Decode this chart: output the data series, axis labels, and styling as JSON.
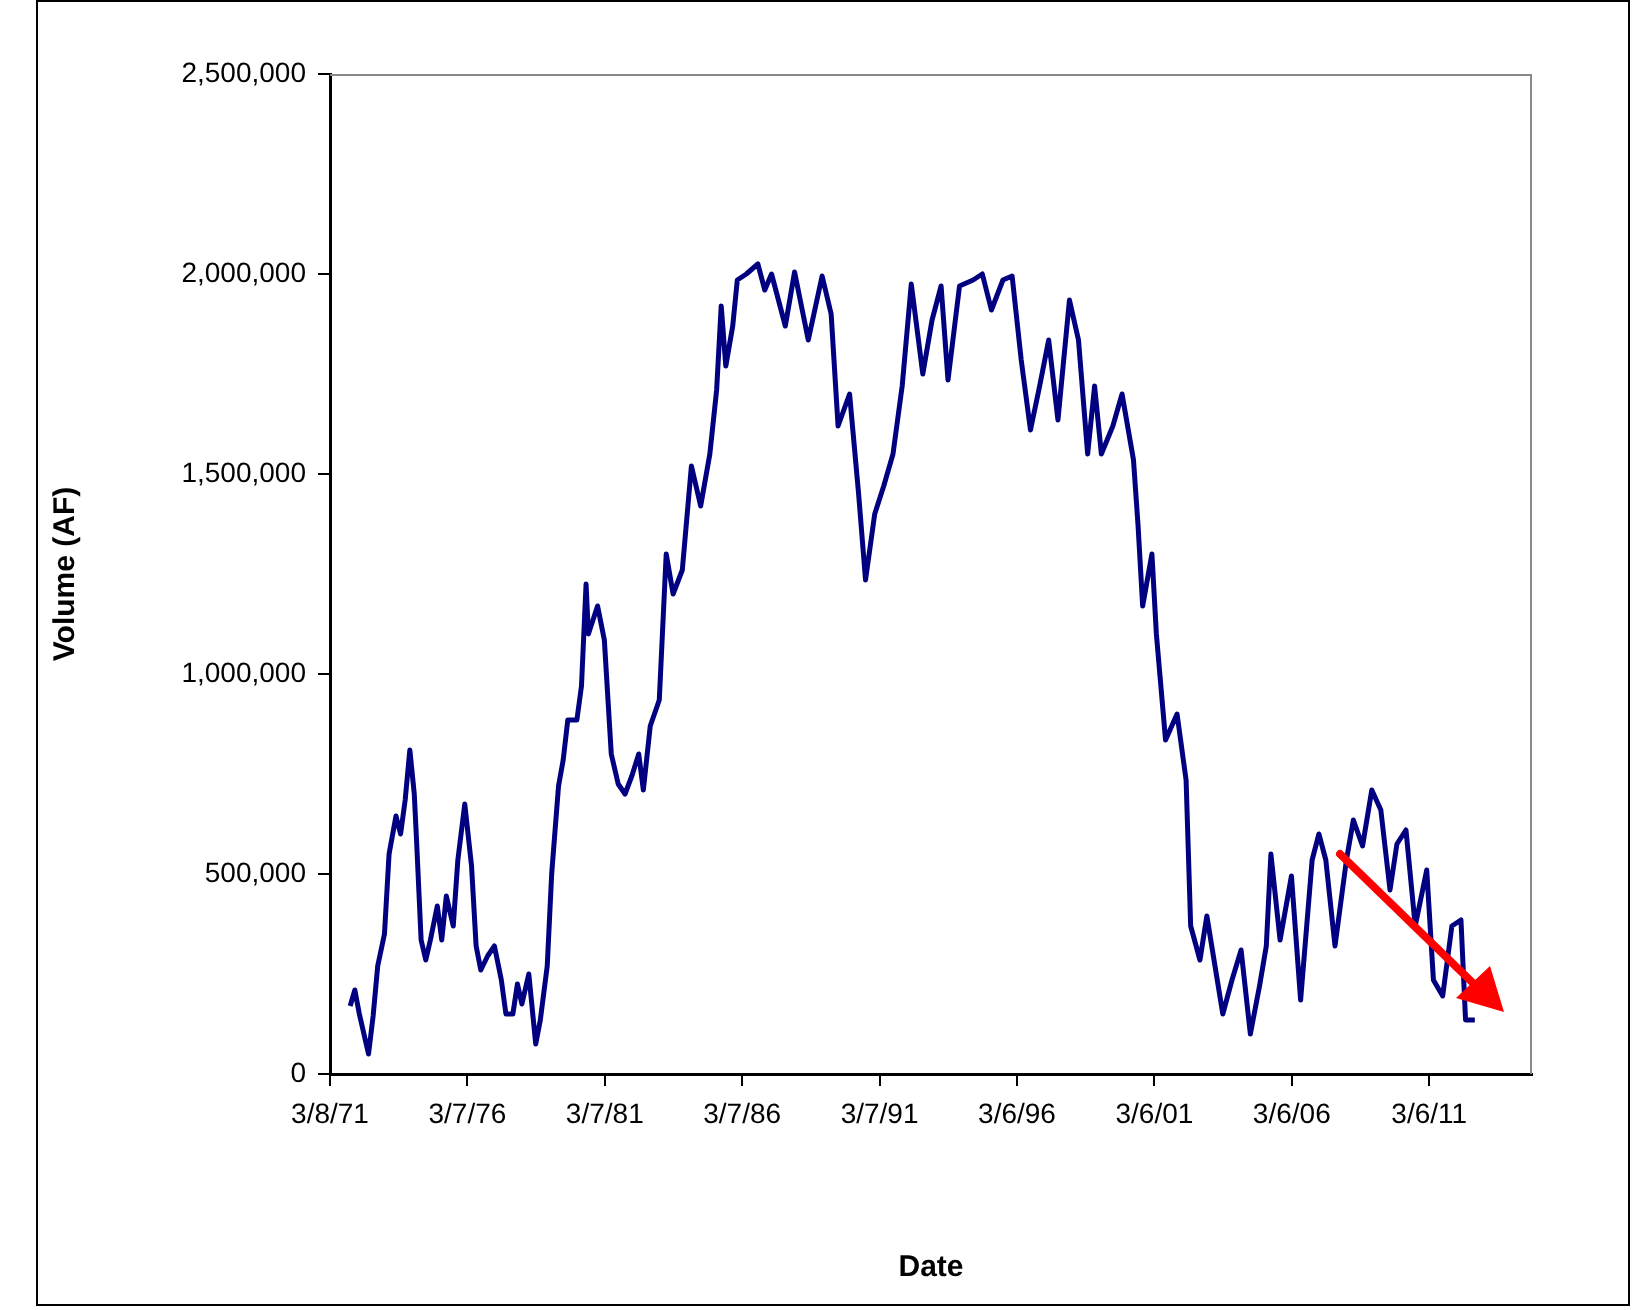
{
  "chart_data": {
    "type": "line",
    "xlabel": "Date",
    "ylabel": "Volume (AF)",
    "x": [
      "1971-12",
      "1972-02",
      "1972-04",
      "1972-08",
      "1972-10",
      "1972-12",
      "1973-03",
      "1973-05",
      "1973-08",
      "1973-10",
      "1973-12",
      "1974-02",
      "1974-04",
      "1974-05",
      "1974-07",
      "1974-09",
      "1974-11",
      "1975-02",
      "1975-04",
      "1975-06",
      "1975-09",
      "1975-11",
      "1976-02",
      "1976-05",
      "1976-07",
      "1976-09",
      "1976-12",
      "1977-03",
      "1977-06",
      "1977-08",
      "1977-11",
      "1978-01",
      "1978-03",
      "1978-06",
      "1978-09",
      "1978-11",
      "1979-02",
      "1979-04",
      "1979-07",
      "1979-09",
      "1979-11",
      "1980-03",
      "1980-05",
      "1980-07",
      "1980-08",
      "1980-12",
      "1981-03",
      "1981-06",
      "1981-09",
      "1981-12",
      "1982-03",
      "1982-06",
      "1982-08",
      "1982-11",
      "1983-03",
      "1983-06",
      "1983-09",
      "1984-01",
      "1984-05",
      "1984-09",
      "1985-01",
      "1985-04",
      "1985-06",
      "1985-08",
      "1985-11",
      "1986-01",
      "1986-05",
      "1986-10",
      "1987-01",
      "1987-04",
      "1987-10",
      "1988-02",
      "1988-08",
      "1989-02",
      "1989-06",
      "1989-09",
      "1990-02",
      "1990-06",
      "1990-09",
      "1991-01",
      "1991-05",
      "1991-09",
      "1992-01",
      "1992-05",
      "1992-10",
      "1993-02",
      "1993-06",
      "1993-09",
      "1994-02",
      "1994-08",
      "1994-12",
      "1995-04",
      "1995-09",
      "1996-01",
      "1996-05",
      "1996-09",
      "1997-01",
      "1997-05",
      "1997-09",
      "1998-02",
      "1998-06",
      "1998-10",
      "1999-01",
      "1999-04",
      "1999-09",
      "2000-01",
      "2000-06",
      "2000-08",
      "2000-10",
      "2001-02",
      "2001-04",
      "2001-08",
      "2002-01",
      "2002-05",
      "2002-07",
      "2002-11",
      "2003-02",
      "2003-09",
      "2004-01",
      "2004-05",
      "2004-09",
      "2005-01",
      "2005-04",
      "2005-06",
      "2005-10",
      "2006-03",
      "2006-07",
      "2006-12",
      "2007-03",
      "2007-06",
      "2007-10",
      "2008-03",
      "2008-06",
      "2008-10",
      "2009-02",
      "2009-06",
      "2009-10",
      "2010-01",
      "2010-05",
      "2010-09",
      "2011-02",
      "2011-05",
      "2011-09",
      "2012-01",
      "2012-05",
      "2012-07",
      "2012-11"
    ],
    "series": [
      {
        "color": "#000080",
        "values": [
          170000,
          210000,
          150000,
          50000,
          145000,
          270000,
          350000,
          550000,
          645000,
          600000,
          685000,
          810000,
          700000,
          585000,
          335000,
          285000,
          335000,
          420000,
          335000,
          445000,
          370000,
          535000,
          675000,
          520000,
          320000,
          260000,
          295000,
          320000,
          235000,
          150000,
          150000,
          225000,
          175000,
          250000,
          75000,
          135000,
          270000,
          500000,
          720000,
          785000,
          885000,
          885000,
          970000,
          1225000,
          1100000,
          1170000,
          1085000,
          800000,
          725000,
          700000,
          745000,
          800000,
          710000,
          870000,
          935000,
          1300000,
          1200000,
          1260000,
          1520000,
          1420000,
          1550000,
          1710000,
          1920000,
          1770000,
          1870000,
          1985000,
          2000000,
          2025000,
          1960000,
          2000000,
          1870000,
          2005000,
          1835000,
          1995000,
          1900000,
          1620000,
          1700000,
          1450000,
          1235000,
          1400000,
          1470000,
          1550000,
          1720000,
          1975000,
          1750000,
          1885000,
          1970000,
          1735000,
          1970000,
          1985000,
          2000000,
          1910000,
          1985000,
          1995000,
          1785000,
          1610000,
          1720000,
          1835000,
          1635000,
          1935000,
          1835000,
          1550000,
          1720000,
          1550000,
          1620000,
          1700000,
          1535000,
          1370000,
          1170000,
          1300000,
          1100000,
          835000,
          900000,
          735000,
          370000,
          285000,
          395000,
          150000,
          235000,
          310000,
          100000,
          220000,
          320000,
          550000,
          335000,
          495000,
          185000,
          535000,
          600000,
          535000,
          320000,
          535000,
          635000,
          570000,
          710000,
          660000,
          460000,
          575000,
          610000,
          370000,
          510000,
          235000,
          195000,
          370000,
          385000,
          135000,
          135000
        ]
      }
    ],
    "xlim": [
      "1971-03-08",
      "2014-12-01"
    ],
    "xticks": [
      {
        "value": "1971-03-08",
        "label": "3/8/71"
      },
      {
        "value": "1976-03-07",
        "label": "3/7/76"
      },
      {
        "value": "1981-03-07",
        "label": "3/7/81"
      },
      {
        "value": "1986-03-07",
        "label": "3/7/86"
      },
      {
        "value": "1991-03-07",
        "label": "3/7/91"
      },
      {
        "value": "1996-03-06",
        "label": "3/6/96"
      },
      {
        "value": "2001-03-06",
        "label": "3/6/01"
      },
      {
        "value": "2006-03-06",
        "label": "3/6/06"
      },
      {
        "value": "2011-03-06",
        "label": "3/6/11"
      }
    ],
    "ylim": [
      0,
      2500000
    ],
    "yticks": [
      {
        "value": 0,
        "label": "0"
      },
      {
        "value": 500000,
        "label": "500,000"
      },
      {
        "value": 1000000,
        "label": "1,000,000"
      },
      {
        "value": 1500000,
        "label": "1,500,000"
      },
      {
        "value": 2000000,
        "label": "2,000,000"
      },
      {
        "value": 2500000,
        "label": "2,500,000"
      }
    ],
    "grid": false,
    "legend": false,
    "marker": "none",
    "line_style": "solid"
  }
}
